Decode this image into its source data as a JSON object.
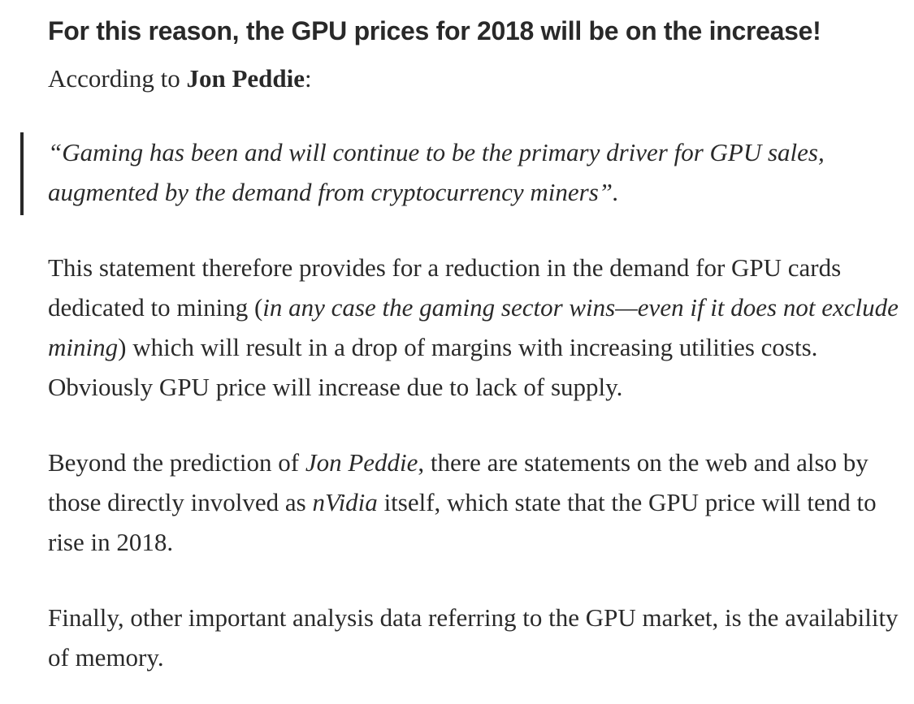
{
  "article": {
    "heading": "For this reason, the GPU prices for 2018 will be on the increase!",
    "lead": {
      "prefix": "According to ",
      "name": "Jon Peddie",
      "suffix": ":"
    },
    "quote": {
      "text": "“Gaming has been and will continue to be the primary driver for GPU sales, augmented by the demand from cryptocurrency miners”."
    },
    "paragraph1": {
      "part1": "This statement therefore provides for a reduction in the demand for GPU cards dedicated to mining (",
      "italic": "in any case the gaming sector wins—even if it does not exclude mining",
      "part2": ") which will result in a drop of margins with increasing utilities costs. Obviously GPU price will increase due to lack of supply."
    },
    "paragraph2": {
      "part1": "Beyond the prediction of ",
      "italic1": "Jon Peddie",
      "part2": ", there are statements on the web and also by those directly involved as ",
      "italic2": "nVidia",
      "part3": " itself, which state that the GPU price will tend to rise in 2018."
    },
    "paragraph3": {
      "text": "Finally, other important analysis data referring to the GPU market, is the availability of memory."
    }
  }
}
